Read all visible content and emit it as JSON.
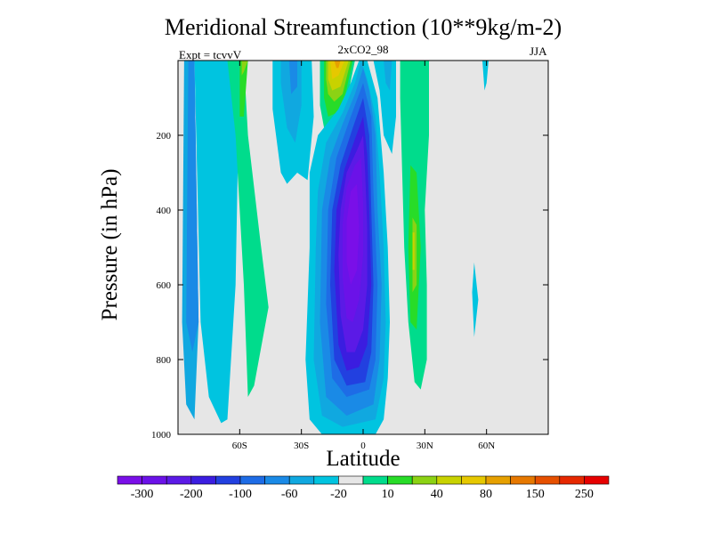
{
  "chart_data": {
    "type": "contour",
    "title": "Meridional Streamfunction (10**9kg/m-2)",
    "subtitle": "2xCO2_98",
    "left_note": "Expt = tcvvV",
    "right_note": "JJA",
    "xlabel": "Latitude",
    "ylabel": "Pressure (in hPa)",
    "x_range": [
      -90,
      90
    ],
    "y_range": [
      0,
      1000
    ],
    "y_reversed": true,
    "x_ticks": [
      {
        "value": -60,
        "label": "60S"
      },
      {
        "value": -30,
        "label": "30S"
      },
      {
        "value": 0,
        "label": "0"
      },
      {
        "value": 30,
        "label": "30N"
      },
      {
        "value": 60,
        "label": "60N"
      }
    ],
    "y_ticks": [
      {
        "value": 200,
        "label": "200"
      },
      {
        "value": 400,
        "label": "400"
      },
      {
        "value": 600,
        "label": "600"
      },
      {
        "value": 800,
        "label": "800"
      },
      {
        "value": 1000,
        "label": "1000"
      }
    ],
    "background_color": "#e6e6e6",
    "colorbar": {
      "colors": [
        "#7a0fe8",
        "#6b12e8",
        "#5b1ae6",
        "#3b1de0",
        "#2240e0",
        "#1e6ce6",
        "#1a8ae6",
        "#10a8e0",
        "#00c4e0",
        "#e6e6e6",
        "#00dc8c",
        "#28dc28",
        "#8cd214",
        "#c8d200",
        "#e6c800",
        "#e6a000",
        "#e67800",
        "#e65000",
        "#e62800",
        "#e60000"
      ],
      "labels": [
        {
          "after": 1,
          "text": "-300"
        },
        {
          "after": 3,
          "text": "-200"
        },
        {
          "after": 5,
          "text": "-100"
        },
        {
          "after": 7,
          "text": "-60"
        },
        {
          "after": 9,
          "text": "-20"
        },
        {
          "after": 11,
          "text": "10"
        },
        {
          "after": 13,
          "text": "40"
        },
        {
          "after": 15,
          "text": "80"
        },
        {
          "after": 17,
          "text": "150"
        },
        {
          "after": 19,
          "text": "250"
        }
      ]
    },
    "cells": [
      {
        "level": -40,
        "color": "#10a8e0",
        "points": [
          [
            -87,
            0
          ],
          [
            -82,
            0
          ],
          [
            -80,
            700
          ],
          [
            -82,
            960
          ],
          [
            -86,
            920
          ],
          [
            -88,
            700
          ]
        ]
      },
      {
        "level": -60,
        "color": "#1a8ae6",
        "points": [
          [
            -85,
            0
          ],
          [
            -82,
            0
          ],
          [
            -80,
            700
          ],
          [
            -83,
            780
          ],
          [
            -86,
            700
          ]
        ]
      },
      {
        "level": -80,
        "color": "#1e6ce6",
        "points": [
          [
            -74,
            0
          ],
          [
            -68,
            0
          ],
          [
            -64,
            600
          ],
          [
            -68,
            800
          ],
          [
            -71,
            800
          ],
          [
            -74,
            450
          ]
        ]
      },
      {
        "level": -100,
        "color": "#2240e0",
        "points": [
          [
            -71,
            300
          ],
          [
            -68,
            300
          ],
          [
            -66,
            500
          ],
          [
            -68,
            750
          ],
          [
            -71,
            700
          ]
        ]
      },
      {
        "level": -20,
        "color": "#00c4e0",
        "points": [
          [
            -84,
            0
          ],
          [
            -60,
            0
          ],
          [
            -62,
            600
          ],
          [
            -66,
            960
          ],
          [
            -69,
            970
          ],
          [
            -75,
            900
          ],
          [
            -79,
            700
          ],
          [
            -82,
            0
          ]
        ]
      },
      {
        "level": 10,
        "color": "#00dc8c",
        "points": [
          [
            -66,
            0
          ],
          [
            -58,
            0
          ],
          [
            -56,
            200
          ],
          [
            -50,
            480
          ],
          [
            -46,
            660
          ],
          [
            -53,
            870
          ],
          [
            -56,
            900
          ],
          [
            -58,
            600
          ],
          [
            -62,
            200
          ]
        ]
      },
      {
        "level": 40,
        "color": "#28dc28",
        "points": [
          [
            -60,
            0
          ],
          [
            -56,
            0
          ],
          [
            -58,
            150
          ],
          [
            -60,
            150
          ]
        ]
      },
      {
        "level": 80,
        "color": "#8cd214",
        "points": [
          [
            -59,
            0
          ],
          [
            -56,
            0
          ],
          [
            -58,
            30
          ],
          [
            -59,
            40
          ]
        ]
      },
      {
        "level": -20,
        "color": "#00c4e0",
        "points": [
          [
            -44,
            0
          ],
          [
            -25,
            0
          ],
          [
            -24,
            150
          ],
          [
            -27,
            320
          ],
          [
            -32,
            300
          ],
          [
            -37,
            330
          ],
          [
            -40,
            300
          ],
          [
            -44,
            130
          ]
        ]
      },
      {
        "level": -40,
        "color": "#10a8e0",
        "points": [
          [
            -40,
            0
          ],
          [
            -30,
            0
          ],
          [
            -30,
            120
          ],
          [
            -33,
            220
          ],
          [
            -37,
            180
          ],
          [
            -40,
            60
          ]
        ]
      },
      {
        "level": -60,
        "color": "#1a8ae6",
        "points": [
          [
            -36,
            0
          ],
          [
            -32,
            0
          ],
          [
            -32,
            70
          ],
          [
            -35,
            90
          ]
        ]
      },
      {
        "level": 10,
        "color": "#00dc8c",
        "points": [
          [
            -21,
            0
          ],
          [
            -4,
            0
          ],
          [
            -8,
            110
          ],
          [
            -12,
            170
          ],
          [
            -15,
            200
          ],
          [
            -19,
            180
          ],
          [
            -21,
            120
          ]
        ]
      },
      {
        "level": 40,
        "color": "#28dc28",
        "points": [
          [
            -19,
            0
          ],
          [
            -5,
            0
          ],
          [
            -9,
            100
          ],
          [
            -13,
            140
          ],
          [
            -17,
            150
          ],
          [
            -19,
            100
          ]
        ]
      },
      {
        "level": 80,
        "color": "#8cd214",
        "points": [
          [
            -18,
            0
          ],
          [
            -6,
            0
          ],
          [
            -10,
            90
          ],
          [
            -14,
            110
          ],
          [
            -17,
            90
          ],
          [
            -18,
            50
          ]
        ]
      },
      {
        "level": 100,
        "color": "#c8d200",
        "points": [
          [
            -17,
            0
          ],
          [
            -7,
            0
          ],
          [
            -11,
            70
          ],
          [
            -15,
            80
          ],
          [
            -17,
            50
          ]
        ]
      },
      {
        "level": 120,
        "color": "#e6c800",
        "points": [
          [
            -16,
            0
          ],
          [
            -9,
            0
          ],
          [
            -12,
            40
          ],
          [
            -15,
            50
          ]
        ]
      },
      {
        "level": 150,
        "color": "#e6a000",
        "points": [
          [
            -14,
            0
          ],
          [
            -11,
            0
          ],
          [
            -12,
            20
          ],
          [
            -13,
            20
          ]
        ]
      },
      {
        "level": -20,
        "color": "#00c4e0",
        "points": [
          [
            -2,
            0
          ],
          [
            2,
            0
          ],
          [
            7,
            100
          ],
          [
            10,
            300
          ],
          [
            12,
            500
          ],
          [
            13,
            700
          ],
          [
            12,
            850
          ],
          [
            10,
            960
          ],
          [
            6,
            1000
          ],
          [
            -20,
            1000
          ],
          [
            -26,
            960
          ],
          [
            -28,
            800
          ],
          [
            -26,
            500
          ],
          [
            -26,
            300
          ],
          [
            -22,
            200
          ],
          [
            -12,
            130
          ],
          [
            -6,
            60
          ]
        ]
      },
      {
        "level": -40,
        "color": "#10a8e0",
        "points": [
          [
            -1,
            0
          ],
          [
            2,
            50
          ],
          [
            6,
            150
          ],
          [
            8,
            300
          ],
          [
            10,
            500
          ],
          [
            11,
            700
          ],
          [
            10,
            850
          ],
          [
            6,
            960
          ],
          [
            -10,
            980
          ],
          [
            -20,
            950
          ],
          [
            -24,
            800
          ],
          [
            -23,
            500
          ],
          [
            -22,
            350
          ],
          [
            -18,
            220
          ],
          [
            -10,
            140
          ],
          [
            -4,
            60
          ]
        ]
      },
      {
        "level": -60,
        "color": "#1a8ae6",
        "points": [
          [
            0,
            20
          ],
          [
            3,
            80
          ],
          [
            6,
            200
          ],
          [
            7,
            400
          ],
          [
            9,
            600
          ],
          [
            8,
            800
          ],
          [
            5,
            920
          ],
          [
            -8,
            950
          ],
          [
            -18,
            900
          ],
          [
            -21,
            700
          ],
          [
            -20,
            400
          ],
          [
            -16,
            260
          ],
          [
            -10,
            170
          ],
          [
            -4,
            90
          ]
        ]
      },
      {
        "level": -80,
        "color": "#1e6ce6",
        "points": [
          [
            0,
            60
          ],
          [
            4,
            150
          ],
          [
            5,
            350
          ],
          [
            7,
            600
          ],
          [
            6,
            800
          ],
          [
            3,
            880
          ],
          [
            -8,
            900
          ],
          [
            -15,
            850
          ],
          [
            -18,
            650
          ],
          [
            -17,
            400
          ],
          [
            -13,
            260
          ],
          [
            -6,
            150
          ]
        ]
      },
      {
        "level": -100,
        "color": "#2240e0",
        "points": [
          [
            0,
            100
          ],
          [
            3,
            200
          ],
          [
            4,
            400
          ],
          [
            5,
            600
          ],
          [
            4,
            780
          ],
          [
            1,
            860
          ],
          [
            -8,
            870
          ],
          [
            -14,
            800
          ],
          [
            -16,
            600
          ],
          [
            -15,
            400
          ],
          [
            -11,
            280
          ],
          [
            -5,
            180
          ]
        ]
      },
      {
        "level": -200,
        "color": "#3b1de0",
        "points": [
          [
            0,
            150
          ],
          [
            2,
            250
          ],
          [
            3,
            400
          ],
          [
            4,
            600
          ],
          [
            2,
            760
          ],
          [
            -2,
            820
          ],
          [
            -8,
            830
          ],
          [
            -12,
            760
          ],
          [
            -14,
            560
          ],
          [
            -13,
            400
          ],
          [
            -9,
            290
          ],
          [
            -4,
            210
          ]
        ]
      },
      {
        "level": -250,
        "color": "#5b1ae6",
        "points": [
          [
            0,
            200
          ],
          [
            1,
            300
          ],
          [
            2,
            450
          ],
          [
            2,
            600
          ],
          [
            0,
            720
          ],
          [
            -4,
            780
          ],
          [
            -8,
            780
          ],
          [
            -11,
            680
          ],
          [
            -12,
            520
          ],
          [
            -11,
            400
          ],
          [
            -8,
            300
          ],
          [
            -3,
            240
          ]
        ]
      },
      {
        "level": -300,
        "color": "#6b12e8",
        "points": [
          [
            -1,
            260
          ],
          [
            0,
            380
          ],
          [
            0,
            520
          ],
          [
            -2,
            640
          ],
          [
            -5,
            700
          ],
          [
            -8,
            690
          ],
          [
            -10,
            580
          ],
          [
            -10,
            440
          ],
          [
            -8,
            340
          ],
          [
            -4,
            280
          ]
        ]
      },
      {
        "level": -350,
        "color": "#7a0fe8",
        "points": [
          [
            -3,
            330
          ],
          [
            -2,
            450
          ],
          [
            -3,
            560
          ],
          [
            -6,
            600
          ],
          [
            -8,
            540
          ],
          [
            -8,
            430
          ],
          [
            -6,
            350
          ]
        ]
      },
      {
        "level": -20,
        "color": "#00c4e0",
        "points": [
          [
            5,
            0
          ],
          [
            16,
            0
          ],
          [
            16,
            150
          ],
          [
            14,
            250
          ],
          [
            10,
            200
          ],
          [
            8,
            80
          ]
        ]
      },
      {
        "level": -40,
        "color": "#10a8e0",
        "points": [
          [
            10,
            0
          ],
          [
            14,
            0
          ],
          [
            13,
            80
          ],
          [
            11,
            60
          ]
        ]
      },
      {
        "level": 10,
        "color": "#00dc8c",
        "points": [
          [
            18,
            0
          ],
          [
            32,
            0
          ],
          [
            32,
            200
          ],
          [
            30,
            400
          ],
          [
            31,
            600
          ],
          [
            31,
            800
          ],
          [
            28,
            880
          ],
          [
            25,
            860
          ],
          [
            22,
            700
          ],
          [
            20,
            500
          ],
          [
            19,
            300
          ],
          [
            18,
            100
          ]
        ]
      },
      {
        "level": 40,
        "color": "#28dc28",
        "points": [
          [
            23,
            280
          ],
          [
            26,
            300
          ],
          [
            28,
            500
          ],
          [
            26,
            720
          ],
          [
            23,
            700
          ],
          [
            22,
            500
          ]
        ]
      },
      {
        "level": 80,
        "color": "#8cd214",
        "points": [
          [
            24,
            420
          ],
          [
            26,
            440
          ],
          [
            26,
            600
          ],
          [
            24,
            620
          ]
        ]
      },
      {
        "level": 100,
        "color": "#c8d200",
        "points": [
          [
            24,
            460
          ],
          [
            25,
            460
          ],
          [
            25,
            560
          ],
          [
            24,
            560
          ]
        ]
      },
      {
        "level": -20,
        "color": "#00c4e0",
        "points": [
          [
            54,
            540
          ],
          [
            56,
            640
          ],
          [
            54,
            740
          ],
          [
            53,
            620
          ]
        ]
      },
      {
        "level": -20,
        "color": "#00c4e0",
        "points": [
          [
            58,
            0
          ],
          [
            61,
            0
          ],
          [
            60,
            60
          ],
          [
            59,
            80
          ]
        ]
      }
    ]
  }
}
